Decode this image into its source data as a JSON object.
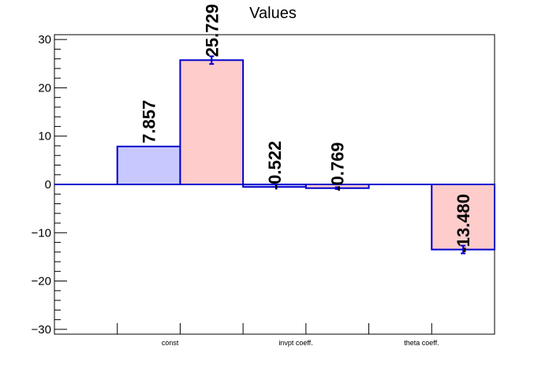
{
  "chart_data": {
    "type": "bar",
    "title": "Values",
    "xlabel": "",
    "ylabel": "",
    "categories": [
      "const",
      "invpt coeff.",
      "theta coeff."
    ],
    "ylim": [
      -31,
      31
    ],
    "yticks": [
      -30,
      -20,
      -10,
      0,
      10,
      20,
      30
    ],
    "ytick_labels": [
      "−30",
      "−20",
      "−10",
      "0",
      "10",
      "20",
      "30"
    ],
    "series": [
      {
        "values": [
          7.857,
          -0.522,
          null
        ],
        "errors": [
          0,
          0,
          0
        ],
        "labels": [
          "7.857",
          "-0.522",
          ""
        ],
        "fill": "#c8c8ff",
        "stroke": "#0000cc"
      },
      {
        "values": [
          25.729,
          -0.769,
          -13.48
        ],
        "errors": [
          0.8,
          0.2,
          0.8
        ],
        "labels": [
          "25.729",
          "-0.769",
          "-13.480"
        ],
        "fill": "#ffcccc",
        "stroke": "#0000cc"
      }
    ],
    "grid": false,
    "legend": "none"
  }
}
